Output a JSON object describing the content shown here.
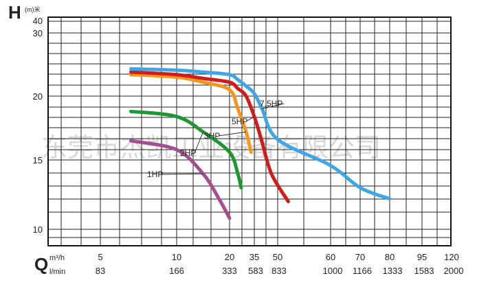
{
  "chart_data": {
    "type": "line",
    "y_axis": {
      "symbol": "H",
      "unit": "(m)米",
      "tick_labels": [
        "40",
        "30",
        "20",
        "15",
        "10"
      ]
    },
    "x_axis": {
      "symbol": "Q",
      "rows": [
        {
          "unit": "m³/h",
          "ticks": [
            "5",
            "10",
            "20",
            "35",
            "50",
            "60",
            "70",
            "80",
            "95",
            "120"
          ]
        },
        {
          "unit": "l/min",
          "ticks": [
            "83",
            "166",
            "333",
            "583",
            "833",
            "1000",
            "1166",
            "1333",
            "1583",
            "2000"
          ]
        }
      ]
    },
    "grid": true,
    "watermark": "东莞市杰凯工业设备有限公司",
    "series": [
      {
        "name": "1HP",
        "color": "#a64d8f",
        "points": [
          [
            7,
            16.5
          ],
          [
            10,
            15.8
          ],
          [
            15,
            14.0
          ],
          [
            18,
            12.2
          ],
          [
            20,
            10.8
          ]
        ]
      },
      {
        "name": "2HP",
        "color": "#1e9632",
        "points": [
          [
            7,
            18.8
          ],
          [
            10,
            18.4
          ],
          [
            15,
            17.2
          ],
          [
            20,
            15.6
          ],
          [
            25,
            14.0
          ],
          [
            27,
            13.0
          ]
        ]
      },
      {
        "name": "3HP",
        "color": "#f5961e",
        "points": [
          [
            7,
            23.4
          ],
          [
            10,
            23.0
          ],
          [
            15,
            22.2
          ],
          [
            20,
            21.0
          ],
          [
            25,
            19.0
          ],
          [
            30,
            17.2
          ],
          [
            33,
            15.6
          ]
        ]
      },
      {
        "name": "5HP",
        "color": "#d21c1c",
        "points": [
          [
            7,
            23.8
          ],
          [
            10,
            23.4
          ],
          [
            15,
            22.8
          ],
          [
            20,
            22.2
          ],
          [
            25,
            21.2
          ],
          [
            30,
            20.0
          ],
          [
            35,
            18.4
          ],
          [
            40,
            16.4
          ],
          [
            46,
            14.0
          ],
          [
            52,
            12.0
          ]
        ]
      },
      {
        "name": "7.5HP",
        "color": "#3ca6e6",
        "points": [
          [
            7,
            24.3
          ],
          [
            10,
            24.1
          ],
          [
            15,
            23.8
          ],
          [
            20,
            23.4
          ],
          [
            25,
            22.6
          ],
          [
            30,
            21.6
          ],
          [
            35,
            20.4
          ],
          [
            40,
            19.0
          ],
          [
            50,
            16.6
          ],
          [
            60,
            14.6
          ],
          [
            70,
            13.0
          ],
          [
            80,
            12.2
          ]
        ]
      }
    ]
  }
}
